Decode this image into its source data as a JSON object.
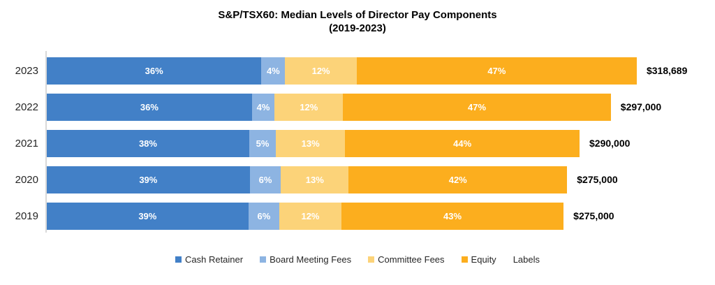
{
  "title": {
    "line1": "S&P/TSX60: Median Levels of Director Pay Components",
    "line2": "(2019-2023)"
  },
  "colors": {
    "background": "#FFFFFF",
    "axis_line": "#D9D9D9",
    "percent_text": "#FFFFFF",
    "total_text": "#000000",
    "year_text": "#262626"
  },
  "chart_data": {
    "type": "bar",
    "orientation": "horizontal",
    "stacked": true,
    "title": "S&P/TSX60: Median Levels of Director Pay Components (2019-2023)",
    "categories": [
      "2023",
      "2022",
      "2021",
      "2020",
      "2019"
    ],
    "series": [
      {
        "name": "Cash Retainer",
        "color": "#4280C7",
        "values": [
          36,
          36,
          38,
          39,
          39
        ]
      },
      {
        "name": "Board Meeting Fees",
        "color": "#8DB4E2",
        "values": [
          4,
          4,
          5,
          6,
          6
        ]
      },
      {
        "name": "Committee Fees",
        "color": "#FCD379",
        "values": [
          12,
          12,
          13,
          13,
          12
        ]
      },
      {
        "name": "Equity",
        "color": "#FCAE1E",
        "values": [
          47,
          47,
          44,
          42,
          43
        ]
      }
    ],
    "value_suffix": "%",
    "totals": [
      "$318,689",
      "$297,000",
      "$290,000",
      "$275,000",
      "$275,000"
    ],
    "bar_length_fraction": [
      1.0,
      0.956,
      0.903,
      0.882,
      0.876
    ],
    "legend": [
      {
        "label": "Cash Retainer",
        "color": "#4280C7"
      },
      {
        "label": "Board Meeting Fees",
        "color": "#8DB4E2"
      },
      {
        "label": "Committee Fees",
        "color": "#FCD379"
      },
      {
        "label": "Equity",
        "color": "#FCAE1E"
      },
      {
        "label": "Labels",
        "color": "none"
      }
    ],
    "legend_position": "bottom",
    "grid": false,
    "xlabel": "",
    "ylabel": ""
  }
}
